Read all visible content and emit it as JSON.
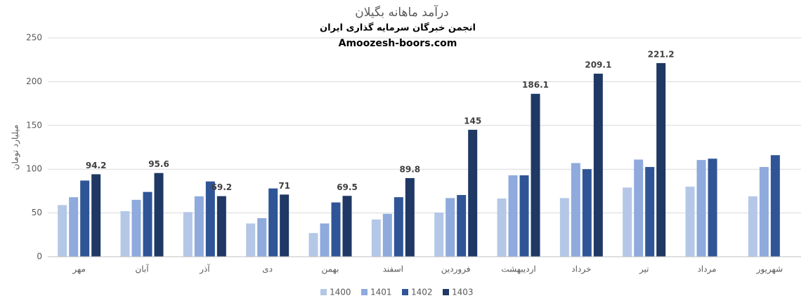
{
  "chart_data": {
    "type": "bar",
    "title": "درآمد ماهانه بگیلان",
    "subtitle": "انجمن خبرگان سرمایه گذاری ایران",
    "annotation": "Amoozesh-boors.com",
    "y_label": "میلیارد تومان",
    "categories": [
      "مهر",
      "آبان",
      "آذر",
      "دی",
      "بهمن",
      "اسفند",
      "فروردین",
      "اردیبهشت",
      "خرداد",
      "تیر",
      "مرداد",
      "شهریور"
    ],
    "series": [
      {
        "name": "1400",
        "color": "#b4c7e7",
        "values": [
          59,
          52,
          51,
          38,
          27,
          42.5,
          50.5,
          66.5,
          67,
          79,
          80,
          69
        ]
      },
      {
        "name": "1401",
        "color": "#8faadc",
        "values": [
          68,
          65,
          69,
          44,
          38,
          49,
          67,
          93,
          107,
          111,
          110.5,
          102.5
        ]
      },
      {
        "name": "1402",
        "color": "#2f5597",
        "values": [
          87,
          74,
          86,
          78,
          62,
          68,
          70.5,
          93,
          100,
          102.5,
          112,
          116
        ]
      },
      {
        "name": "1403",
        "color": "#1f3864",
        "values": [
          94.2,
          95.6,
          69.2,
          71,
          69.5,
          89.8,
          145,
          186.1,
          209.1,
          221.2,
          null,
          null
        ],
        "data_labels": true
      }
    ],
    "ylim": [
      0,
      250
    ],
    "yticks": [
      0,
      50,
      100,
      150,
      200,
      250
    ],
    "grid": true,
    "legend": "bottom"
  }
}
